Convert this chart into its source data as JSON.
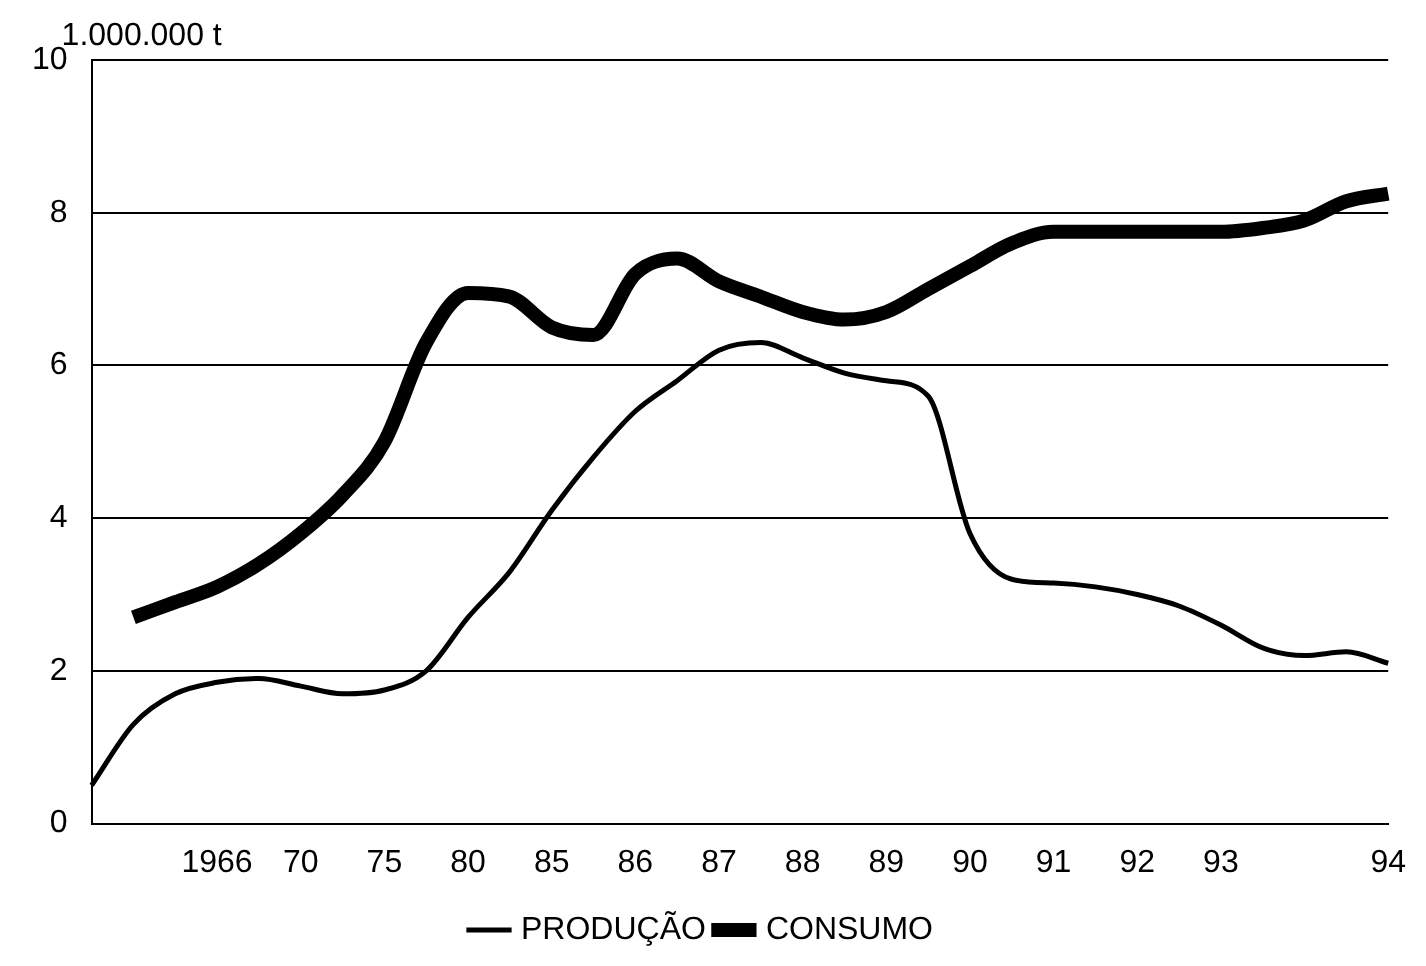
{
  "chart_data": {
    "type": "line",
    "ylabel": "1.000.000 t",
    "categories": [
      null,
      null,
      null,
      "1966",
      null,
      "70",
      null,
      "75",
      null,
      "80",
      null,
      "85",
      null,
      "86",
      null,
      "87",
      null,
      "88",
      null,
      "89",
      null,
      "90",
      null,
      "91",
      null,
      "92",
      null,
      "93",
      null,
      null,
      null,
      "94"
    ],
    "series": [
      {
        "name": "PRODUÇÃO",
        "color": "#000000",
        "values": [
          0.5,
          1.3,
          1.7,
          1.85,
          1.9,
          1.8,
          1.7,
          1.75,
          2.0,
          2.7,
          3.3,
          4.1,
          4.8,
          5.4,
          5.8,
          6.2,
          6.3,
          6.1,
          5.9,
          5.8,
          5.6,
          3.8,
          3.2,
          3.15,
          3.1,
          3.0,
          2.85,
          2.6,
          2.3,
          2.2,
          2.25,
          2.1
        ]
      },
      {
        "name": "CONSUMO",
        "color": "#000000",
        "values": [
          null,
          2.7,
          2.9,
          3.1,
          3.4,
          3.8,
          4.3,
          5.0,
          6.3,
          6.95,
          6.9,
          6.5,
          6.4,
          7.2,
          7.4,
          7.1,
          6.9,
          6.7,
          6.6,
          6.7,
          7.0,
          7.3,
          7.6,
          7.75,
          7.75,
          7.75,
          7.75,
          7.75,
          7.8,
          7.9,
          8.15,
          8.25
        ]
      }
    ],
    "ylim": [
      0,
      10
    ],
    "yticks": [
      0,
      2,
      4,
      6,
      8,
      10
    ],
    "grid": "y",
    "legend": "bottom",
    "marker": "none",
    "line_style": "solid"
  }
}
